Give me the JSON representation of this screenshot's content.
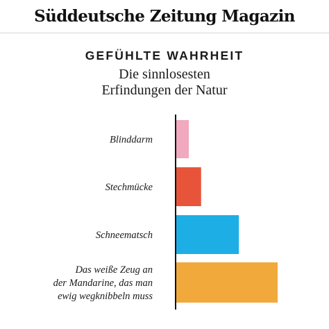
{
  "brand": {
    "name": "Süddeutsche Zeitung Magazin"
  },
  "chart_data": {
    "type": "bar",
    "orientation": "horizontal",
    "kicker": "GEFÜHLTE WAHRHEIT",
    "title_lines": [
      "Die sinnlosesten",
      "Erfindungen der Natur"
    ],
    "xlabel": "",
    "ylabel": "",
    "grid": false,
    "xlim": [
      0,
      100
    ],
    "categories": [
      [
        "Blinddarm"
      ],
      [
        "Stechmücke"
      ],
      [
        "Schneematsch"
      ],
      [
        "Das weiße Zeug an",
        "der Mandarine, das man",
        "ewig wegknibbeln muss"
      ]
    ],
    "values": [
      13,
      25,
      62,
      100
    ],
    "colors": [
      "#f0a9be",
      "#e8543a",
      "#1eaee6",
      "#f2a93b"
    ]
  }
}
